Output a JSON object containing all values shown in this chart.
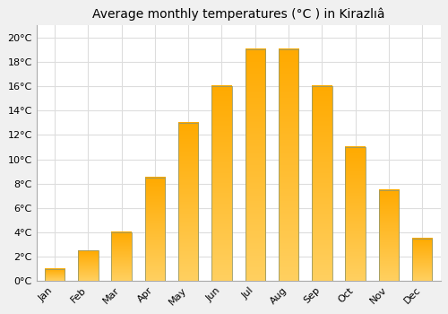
{
  "title": "Average monthly temperatures (°C ) in Kirazlıâ",
  "title_clean": "Average monthly temperatures (°C ) in Kirazlıâ",
  "months": [
    "Jan",
    "Feb",
    "Mar",
    "Apr",
    "May",
    "Jun",
    "Jul",
    "Aug",
    "Sep",
    "Oct",
    "Nov",
    "Dec"
  ],
  "values": [
    1.0,
    2.5,
    4.0,
    8.5,
    13.0,
    16.0,
    19.0,
    19.0,
    16.0,
    11.0,
    7.5,
    3.5
  ],
  "bar_color": "#FFA500",
  "bar_edge_color": "#888844",
  "background_color": "#f0f0f0",
  "plot_bg_color": "#ffffff",
  "ylim": [
    0,
    21
  ],
  "yticks": [
    0,
    2,
    4,
    6,
    8,
    10,
    12,
    14,
    16,
    18,
    20
  ],
  "ytick_labels": [
    "0°C",
    "2°C",
    "4°C",
    "6°C",
    "8°C",
    "10°C",
    "12°C",
    "14°C",
    "16°C",
    "18°C",
    "20°C"
  ],
  "title_fontsize": 10,
  "tick_fontsize": 8,
  "grid_color": "#dddddd"
}
